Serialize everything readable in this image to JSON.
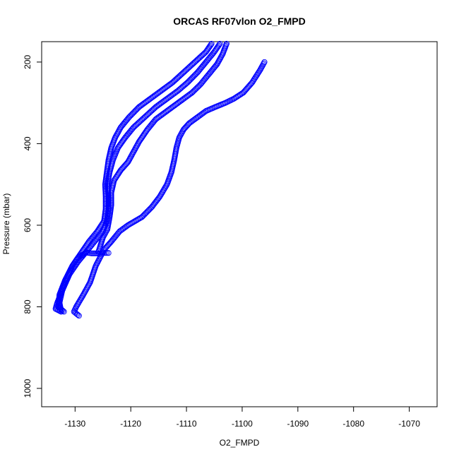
{
  "chart_data": {
    "type": "scatter",
    "title": "ORCAS RF07vlon O2_FMPD",
    "xlabel": "O2_FMPD",
    "ylabel": "Pressure (mbar)",
    "xlim": [
      -1136,
      -1065
    ],
    "ylim": [
      1045,
      150
    ],
    "y_reversed": true,
    "grid": false,
    "marker": "open-circle",
    "color": "#0000ff",
    "x_ticks": [
      -1130,
      -1120,
      -1110,
      -1100,
      -1090,
      -1080,
      -1070
    ],
    "x_tick_labels": [
      "-1130",
      "-1120",
      "-1110",
      "-1100",
      "-1090",
      "-1080",
      "-1070"
    ],
    "y_ticks": [
      200,
      400,
      600,
      800,
      1000
    ],
    "y_tick_labels": [
      "200",
      "400",
      "600",
      "800",
      "1000"
    ],
    "series": [
      {
        "points": [
          [
            -1096.0,
            200
          ],
          [
            -1096.8,
            220
          ],
          [
            -1098.2,
            250
          ],
          [
            -1099.8,
            275
          ],
          [
            -1101.5,
            290
          ],
          [
            -1103.0,
            300
          ],
          [
            -1104.8,
            310
          ],
          [
            -1106.5,
            320
          ],
          [
            -1108.0,
            335
          ],
          [
            -1109.5,
            350
          ],
          [
            -1110.5,
            365
          ],
          [
            -1111.3,
            385
          ],
          [
            -1111.8,
            410
          ],
          [
            -1112.2,
            440
          ],
          [
            -1112.7,
            470
          ],
          [
            -1113.5,
            500
          ],
          [
            -1114.8,
            530
          ],
          [
            -1116.2,
            555
          ],
          [
            -1118.0,
            580
          ],
          [
            -1120.5,
            600
          ],
          [
            -1122.0,
            615
          ],
          [
            -1123.5,
            640
          ],
          [
            -1124.8,
            660
          ],
          [
            -1126.3,
            700
          ],
          [
            -1127.3,
            740
          ],
          [
            -1128.5,
            770
          ],
          [
            -1129.8,
            800
          ],
          [
            -1130.2,
            812
          ],
          [
            -1129.3,
            822
          ]
        ]
      },
      {
        "points": [
          [
            -1102.8,
            155
          ],
          [
            -1103.5,
            180
          ],
          [
            -1104.5,
            205
          ],
          [
            -1106.0,
            230
          ],
          [
            -1107.5,
            255
          ],
          [
            -1109.0,
            275
          ],
          [
            -1111.0,
            295
          ],
          [
            -1113.5,
            320
          ],
          [
            -1115.5,
            340
          ],
          [
            -1117.0,
            365
          ],
          [
            -1118.5,
            395
          ],
          [
            -1119.5,
            420
          ],
          [
            -1120.5,
            445
          ],
          [
            -1121.8,
            465
          ],
          [
            -1123.0,
            490
          ],
          [
            -1123.5,
            520
          ],
          [
            -1123.5,
            550
          ],
          [
            -1123.8,
            580
          ],
          [
            -1124.2,
            610
          ],
          [
            -1125.0,
            630
          ],
          [
            -1125.8,
            665
          ]
        ]
      },
      {
        "points": [
          [
            -1104.0,
            155
          ],
          [
            -1105.0,
            175
          ],
          [
            -1106.5,
            200
          ],
          [
            -1108.0,
            225
          ],
          [
            -1109.8,
            250
          ],
          [
            -1111.5,
            270
          ],
          [
            -1113.5,
            290
          ],
          [
            -1115.5,
            310
          ],
          [
            -1117.5,
            335
          ],
          [
            -1119.5,
            360
          ],
          [
            -1121.0,
            385
          ],
          [
            -1122.3,
            410
          ],
          [
            -1123.2,
            440
          ],
          [
            -1123.8,
            470
          ],
          [
            -1124.2,
            500
          ],
          [
            -1124.0,
            530
          ],
          [
            -1124.0,
            560
          ],
          [
            -1124.3,
            590
          ],
          [
            -1125.0,
            615
          ],
          [
            -1126.5,
            640
          ],
          [
            -1128.0,
            665
          ],
          [
            -1129.5,
            690
          ],
          [
            -1131.0,
            720
          ],
          [
            -1132.3,
            760
          ],
          [
            -1133.2,
            790
          ],
          [
            -1133.5,
            805
          ],
          [
            -1132.5,
            812
          ]
        ]
      },
      {
        "points": [
          [
            -1105.5,
            155
          ],
          [
            -1106.5,
            175
          ],
          [
            -1108.5,
            200
          ],
          [
            -1110.5,
            225
          ],
          [
            -1112.5,
            250
          ],
          [
            -1114.5,
            270
          ],
          [
            -1116.5,
            290
          ],
          [
            -1118.5,
            310
          ],
          [
            -1120.3,
            335
          ],
          [
            -1121.8,
            360
          ],
          [
            -1122.8,
            385
          ],
          [
            -1123.5,
            410
          ],
          [
            -1124.0,
            440
          ],
          [
            -1124.3,
            470
          ],
          [
            -1124.6,
            500
          ],
          [
            -1124.5,
            530
          ],
          [
            -1124.5,
            560
          ],
          [
            -1124.8,
            590
          ],
          [
            -1126.0,
            615
          ],
          [
            -1127.5,
            640
          ],
          [
            -1129.0,
            670
          ],
          [
            -1130.5,
            700
          ],
          [
            -1131.8,
            735
          ],
          [
            -1132.8,
            770
          ],
          [
            -1133.0,
            800
          ],
          [
            -1132.0,
            812
          ]
        ]
      },
      {
        "points": [
          [
            -1124.0,
            668
          ],
          [
            -1125.0,
            668
          ],
          [
            -1126.0,
            669
          ],
          [
            -1127.0,
            669
          ],
          [
            -1128.0,
            667
          ],
          [
            -1129.5,
            680
          ],
          [
            -1130.5,
            700
          ],
          [
            -1131.5,
            730
          ],
          [
            -1132.3,
            760
          ],
          [
            -1132.8,
            790
          ],
          [
            -1132.5,
            810
          ]
        ]
      }
    ]
  }
}
